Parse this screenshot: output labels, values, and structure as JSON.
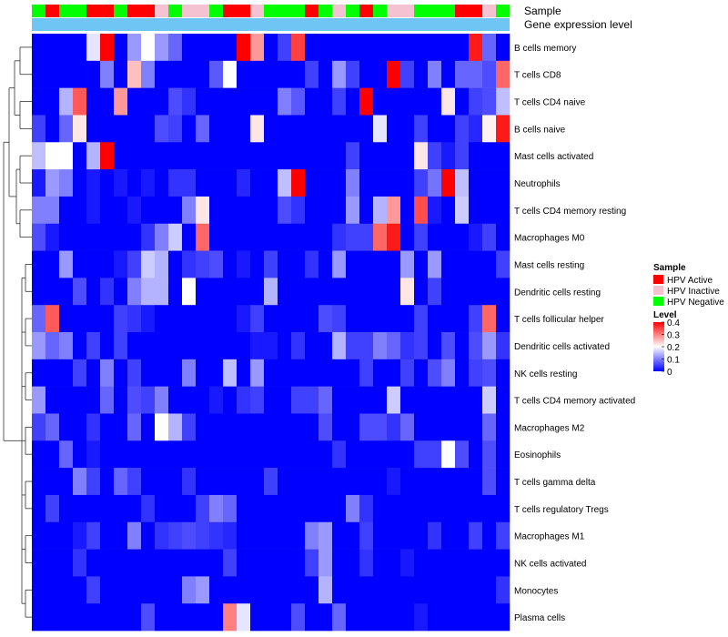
{
  "chart_data": {
    "type": "heatmap",
    "title": "",
    "annotation_labels": [
      "Sample",
      "Gene expression level"
    ],
    "row_labels": [
      "B cells memory",
      "T cells CD8",
      "T cells CD4 naive",
      "B cells naive",
      "Mast cells activated",
      "Neutrophils",
      "T cells CD4 memory resting",
      "Macrophages M0",
      "Mast cells resting",
      "Dendritic cells resting",
      "T cells follicular helper",
      "Dendritic cells activated",
      "NK cells resting",
      "T cells CD4 memory activated",
      "Macrophages M2",
      "Eosinophils",
      "T cells gamma delta",
      "T cells regulatory  Tregs",
      "Macrophages M1",
      "NK cells activated",
      "Monocytes",
      "Plasma cells"
    ],
    "sample_categories": [
      "HPV Active",
      "HPV Inactive",
      "HPV Negative"
    ],
    "sample_colors": [
      "#FF0000",
      "#F4C2D0",
      "#00FF00"
    ],
    "sample_strip": [
      2,
      0,
      2,
      2,
      0,
      0,
      2,
      0,
      0,
      1,
      2,
      1,
      1,
      2,
      0,
      0,
      1,
      2,
      2,
      2,
      0,
      2,
      1,
      2,
      0,
      2,
      1,
      1,
      2,
      2,
      2,
      0,
      0,
      1,
      2
    ],
    "expression_color": "#6FC6F4",
    "legend": {
      "sample_title": "Sample",
      "level_title": "Level",
      "level_ticks": [
        "0.4",
        "0.3",
        "0.2",
        "0.1",
        "0"
      ]
    },
    "color_scale": {
      "low": "#0000FF",
      "mid": "#FFFFFF",
      "high": "#FF0000",
      "min": 0,
      "max": 0.4
    },
    "values": [
      [
        0,
        0,
        0,
        0,
        0.18,
        0.4,
        0,
        0.12,
        0.2,
        0.12,
        0.08,
        0,
        0,
        0,
        0,
        0.4,
        0.28,
        0,
        0.05,
        0.35,
        0,
        0,
        0,
        0,
        0,
        0,
        0,
        0,
        0,
        0,
        0,
        0,
        0.38,
        0.08,
        0
      ],
      [
        0,
        0,
        0,
        0,
        0,
        0.1,
        0,
        0.25,
        0.1,
        0,
        0,
        0,
        0,
        0.07,
        0.2,
        0,
        0,
        0,
        0,
        0,
        0.05,
        0,
        0.12,
        0.05,
        0,
        0,
        0.4,
        0.05,
        0,
        0.1,
        0,
        0.08,
        0.08,
        0.06,
        0.32
      ],
      [
        0,
        0,
        0.14,
        0.33,
        0,
        0,
        0.28,
        0,
        0,
        0,
        0.06,
        0.04,
        0,
        0,
        0,
        0,
        0,
        0,
        0.1,
        0.07,
        0,
        0,
        0.05,
        0,
        0.4,
        0,
        0,
        0,
        0,
        0,
        0.22,
        0,
        0.05,
        0.06,
        0.15
      ],
      [
        0.05,
        0,
        0.08,
        0.22,
        0,
        0,
        0,
        0,
        0,
        0.06,
        0.05,
        0,
        0.08,
        0,
        0,
        0,
        0.22,
        0,
        0,
        0,
        0,
        0,
        0,
        0,
        0,
        0.18,
        0,
        0,
        0.05,
        0,
        0,
        0.05,
        0.03,
        0.21,
        0.38
      ],
      [
        0.15,
        0.2,
        0.2,
        0,
        0.14,
        0.4,
        0,
        0,
        0,
        0,
        0,
        0,
        0,
        0,
        0,
        0,
        0,
        0,
        0,
        0,
        0,
        0,
        0,
        0.05,
        0,
        0,
        0,
        0,
        0.22,
        0.05,
        0.02,
        0.05,
        0,
        0,
        0
      ],
      [
        0.02,
        0.12,
        0.1,
        0,
        0.02,
        0,
        0.02,
        0,
        0.02,
        0,
        0.04,
        0.04,
        0,
        0,
        0,
        0.03,
        0,
        0,
        0.15,
        0.4,
        0,
        0,
        0,
        0.1,
        0,
        0,
        0,
        0,
        0.05,
        0.09,
        0.4,
        0.15,
        0,
        0,
        0
      ],
      [
        0.1,
        0.1,
        0,
        0,
        0.02,
        0,
        0,
        0.02,
        0,
        0,
        0,
        0.1,
        0.22,
        0,
        0,
        0,
        0,
        0,
        0.06,
        0.04,
        0,
        0,
        0,
        0.12,
        0,
        0.14,
        0.28,
        0,
        0.34,
        0.02,
        0,
        0.16,
        0,
        0,
        0
      ],
      [
        0.06,
        0.02,
        0,
        0,
        0,
        0,
        0,
        0,
        0.04,
        0.1,
        0.16,
        0,
        0.32,
        0,
        0,
        0,
        0,
        0,
        0,
        0,
        0,
        0,
        0.04,
        0.05,
        0.05,
        0.32,
        0.38,
        0,
        0.05,
        0,
        0,
        0,
        0.02,
        0.05,
        0
      ],
      [
        0,
        0,
        0.12,
        0,
        0,
        0,
        0.02,
        0.05,
        0.16,
        0.14,
        0,
        0.04,
        0.05,
        0.06,
        0,
        0.02,
        0,
        0.05,
        0,
        0,
        0.04,
        0,
        0.12,
        0,
        0,
        0,
        0,
        0.12,
        0,
        0.12,
        0,
        0,
        0,
        0,
        0.05
      ],
      [
        0,
        0,
        0,
        0.06,
        0,
        0.04,
        0,
        0.1,
        0.14,
        0.14,
        0,
        0.2,
        0,
        0,
        0,
        0,
        0,
        0.14,
        0,
        0,
        0,
        0,
        0,
        0,
        0,
        0,
        0,
        0.22,
        0,
        0.05,
        0,
        0,
        0,
        0,
        0
      ],
      [
        0.08,
        0.33,
        0,
        0,
        0,
        0,
        0.05,
        0.04,
        0.02,
        0,
        0,
        0,
        0,
        0,
        0,
        0.02,
        0.05,
        0,
        0,
        0,
        0,
        0.06,
        0.05,
        0,
        0,
        0,
        0,
        0,
        0.05,
        0,
        0,
        0,
        0.05,
        0.32,
        0
      ],
      [
        0.12,
        0.08,
        0.1,
        0,
        0.05,
        0,
        0.05,
        0,
        0,
        0,
        0,
        0,
        0,
        0,
        0,
        0,
        0.02,
        0.02,
        0,
        0.04,
        0,
        0,
        0.14,
        0.05,
        0.05,
        0.1,
        0.08,
        0.04,
        0.05,
        0,
        0.06,
        0,
        0.06,
        0.12,
        0.04
      ],
      [
        0,
        0,
        0,
        0.05,
        0,
        0.1,
        0,
        0.05,
        0,
        0,
        0,
        0.1,
        0,
        0,
        0.15,
        0,
        0.12,
        0,
        0,
        0,
        0,
        0,
        0,
        0,
        0.05,
        0,
        0,
        0.05,
        0,
        0.06,
        0.1,
        0,
        0.05,
        0.06,
        0
      ],
      [
        0.12,
        0,
        0,
        0,
        0,
        0.08,
        0,
        0.06,
        0.05,
        0.1,
        0,
        0,
        0,
        0.02,
        0,
        0.04,
        0.05,
        0,
        0,
        0.05,
        0.05,
        0.08,
        0,
        0,
        0,
        0,
        0.16,
        0,
        0,
        0,
        0,
        0,
        0,
        0.16,
        0
      ],
      [
        0.05,
        0.08,
        0,
        0,
        0.04,
        0,
        0,
        0.08,
        0,
        0.2,
        0.14,
        0.05,
        0,
        0,
        0,
        0,
        0,
        0,
        0,
        0,
        0,
        0.06,
        0,
        0,
        0.06,
        0.06,
        0.04,
        0.08,
        0,
        0,
        0,
        0,
        0,
        0.08,
        0
      ],
      [
        0,
        0,
        0.08,
        0,
        0.02,
        0,
        0,
        0,
        0,
        0,
        0,
        0,
        0,
        0,
        0,
        0,
        0,
        0,
        0,
        0,
        0,
        0,
        0.04,
        0,
        0,
        0,
        0,
        0,
        0.05,
        0.05,
        0.2,
        0.06,
        0,
        0.06,
        0
      ],
      [
        0,
        0,
        0,
        0.1,
        0.05,
        0,
        0.08,
        0.05,
        0,
        0,
        0,
        0.04,
        0,
        0,
        0,
        0,
        0,
        0.05,
        0,
        0,
        0,
        0,
        0,
        0,
        0,
        0,
        0.02,
        0,
        0,
        0,
        0,
        0,
        0,
        0.06,
        0
      ],
      [
        0,
        0.05,
        0,
        0,
        0,
        0,
        0,
        0,
        0.04,
        0,
        0,
        0,
        0.05,
        0.1,
        0.08,
        0,
        0,
        0,
        0,
        0,
        0,
        0,
        0,
        0.1,
        0.04,
        0,
        0,
        0,
        0,
        0,
        0,
        0,
        0,
        0,
        0
      ],
      [
        0,
        0,
        0,
        0.02,
        0.05,
        0,
        0,
        0.1,
        0,
        0.04,
        0.05,
        0.06,
        0.05,
        0.04,
        0.03,
        0,
        0,
        0,
        0,
        0,
        0.1,
        0.12,
        0,
        0,
        0.05,
        0,
        0,
        0,
        0,
        0.04,
        0,
        0,
        0.05,
        0,
        0.05
      ],
      [
        0,
        0,
        0,
        0.04,
        0,
        0,
        0,
        0,
        0,
        0,
        0,
        0,
        0,
        0,
        0.05,
        0,
        0,
        0,
        0,
        0,
        0.05,
        0.12,
        0,
        0,
        0.04,
        0,
        0,
        0.02,
        0,
        0,
        0,
        0,
        0,
        0,
        0
      ],
      [
        0,
        0,
        0,
        0,
        0.05,
        0,
        0,
        0,
        0,
        0,
        0,
        0.1,
        0.12,
        0,
        0,
        0,
        0,
        0,
        0,
        0,
        0,
        0.14,
        0,
        0,
        0,
        0,
        0,
        0,
        0,
        0,
        0,
        0,
        0,
        0,
        0.04
      ],
      [
        0,
        0,
        0,
        0,
        0,
        0,
        0,
        0,
        0.06,
        0,
        0,
        0,
        0,
        0,
        0.3,
        0.18,
        0,
        0,
        0,
        0.06,
        0,
        0,
        0.08,
        0,
        0,
        0,
        0,
        0,
        0.02,
        0,
        0,
        0,
        0,
        0,
        0
      ]
    ]
  }
}
